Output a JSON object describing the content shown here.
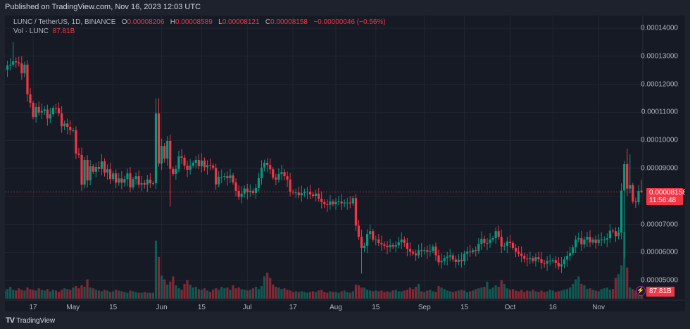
{
  "header": {
    "published": "Published on TradingView.com, Nov 16, 2023 12:03 UTC"
  },
  "legend": {
    "symbol": "LUNC / TetherUS, 1D, BINANCE",
    "o_label": "O",
    "o": "0.00008206",
    "h_label": "H",
    "h": "0.00008589",
    "l_label": "L",
    "l": "0.00008121",
    "c_label": "C",
    "c": "0.00008158",
    "change": "−0.00000046 (−0.56%)",
    "vol_label": "Vol · LUNC",
    "vol": "87.81B"
  },
  "price_axis": {
    "labels": [
      "0.00014000",
      "0.00013000",
      "0.00012000",
      "0.00011000",
      "0.00010000",
      "0.00009000",
      "0.00007000",
      "0.00006000",
      "0.00005000"
    ],
    "values": [
      14,
      13,
      12,
      11,
      10,
      9,
      7,
      6,
      5
    ],
    "unit_note": "values in 1e-5"
  },
  "last_price": {
    "value": "0.00008158",
    "countdown": "11:56:48"
  },
  "volume_tag": "87.81B",
  "time_axis": {
    "last_date": "2023-11-16",
    "ticks": [
      {
        "label": "17",
        "date": "2023-04-17"
      },
      {
        "label": "May",
        "date": "2023-05-01"
      },
      {
        "label": "15",
        "date": "2023-05-15"
      },
      {
        "label": "Jun",
        "date": "2023-06-01"
      },
      {
        "label": "15",
        "date": "2023-06-15"
      },
      {
        "label": "Jul",
        "date": "2023-07-01"
      },
      {
        "label": "17",
        "date": "2023-07-17"
      },
      {
        "label": "Aug",
        "date": "2023-08-01"
      },
      {
        "label": "15",
        "date": "2023-08-15"
      },
      {
        "label": "Sep",
        "date": "2023-09-01"
      },
      {
        "label": "15",
        "date": "2023-09-15"
      },
      {
        "label": "Oct",
        "date": "2023-10-01"
      },
      {
        "label": "16",
        "date": "2023-10-16"
      },
      {
        "label": "Nov",
        "date": "2023-11-01"
      }
    ]
  },
  "colors": {
    "up": "#089981",
    "down": "#f23645",
    "bg": "#161a25",
    "grid": "#232632"
  },
  "chart_data": {
    "type": "candlestick",
    "price_unit": "1e-5 USDT",
    "ylim": [
      4.4,
      14.4
    ],
    "closes": [
      12.44,
      12.67,
      12.49,
      12.5,
      12.52,
      12.67,
      12.7,
      12.82,
      12.78,
      12.74,
      12.39,
      12.7,
      11.64,
      11.34,
      10.83,
      11.19,
      10.99,
      11.05,
      11.1,
      10.78,
      10.93,
      11.16,
      11.15,
      10.96,
      10.5,
      10.6,
      10.48,
      10.36,
      10.36,
      9.53,
      9.48,
      8.42,
      9.3,
      8.57,
      9.07,
      8.88,
      9.05,
      8.98,
      9.25,
      8.85,
      8.97,
      8.62,
      8.82,
      8.49,
      8.64,
      8.49,
      8.62,
      8.82,
      8.32,
      8.62,
      8.72,
      8.42,
      8.47,
      8.42,
      8.6,
      8.47,
      8.47,
      10.96,
      9.17,
      9.8,
      9.35,
      9.98,
      8.98,
      8.8,
      8.98,
      9.43,
      9.38,
      9.1,
      8.95,
      9.1,
      9.2,
      9.3,
      9.08,
      9.28,
      9.04,
      9.12,
      9.1,
      9.02,
      8.43,
      8.7,
      8.7,
      8.72,
      8.65,
      8.75,
      8.5,
      8.2,
      7.98,
      8.1,
      8.28,
      8.15,
      8.2,
      8.12,
      8.3,
      8.65,
      9.03,
      9.2,
      9.12,
      8.97,
      8.67,
      8.6,
      8.8,
      8.87,
      8.72,
      8.6,
      8.17,
      8.14,
      8.14,
      8.04,
      8.12,
      8.17,
      8.17,
      8.07,
      8.02,
      8.1,
      7.92,
      7.8,
      7.72,
      7.7,
      7.82,
      7.72,
      7.8,
      7.82,
      7.75,
      7.78,
      7.78,
      7.75,
      7.94,
      6.96,
      6.56,
      6.16,
      6.24,
      6.66,
      6.76,
      6.46,
      6.46,
      6.34,
      6.29,
      6.24,
      6.19,
      6.26,
      6.21,
      6.26,
      6.36,
      6.46,
      6.34,
      6.13,
      6.03,
      5.96,
      5.9,
      6.08,
      6.06,
      6.08,
      6.03,
      6.06,
      6.21,
      5.9,
      5.65,
      5.7,
      5.8,
      5.85,
      5.9,
      5.75,
      5.66,
      5.74,
      5.69,
      5.96,
      6.03,
      6.01,
      6.08,
      6.06,
      6.31,
      6.49,
      6.34,
      6.34,
      6.46,
      6.51,
      6.76,
      6.56,
      6.21,
      6.24,
      6.39,
      6.34,
      6.16,
      6.03,
      5.96,
      5.88,
      5.78,
      5.76,
      5.8,
      5.7,
      5.83,
      5.76,
      5.63,
      5.6,
      5.7,
      5.7,
      5.73,
      5.63,
      5.5,
      5.58,
      5.75,
      5.88,
      5.98,
      6.18,
      6.46,
      6.51,
      6.29,
      6.46,
      6.56,
      6.36,
      6.46,
      6.34,
      6.46,
      6.46,
      6.46,
      6.51,
      6.78,
      6.76,
      6.58,
      6.71,
      8.206,
      9.15,
      8.28,
      8.4,
      7.82,
      7.79,
      8.2,
      8.158
    ],
    "high_overrides": {
      "7": 13.5,
      "57": 11.5,
      "58": 11.5,
      "222": 9.7,
      "223": 9.5,
      "227": 8.589
    },
    "low_overrides": {
      "62": 7.64,
      "129": 5.25,
      "221": 5.8,
      "227": 8.121
    },
    "volumes_B": [
      150,
      110,
      120,
      140,
      110,
      130,
      160,
      120,
      110,
      140,
      120,
      110,
      150,
      130,
      120,
      110,
      140,
      120,
      110,
      130,
      100,
      120,
      110,
      90,
      120,
      140,
      130,
      120,
      150,
      170,
      140,
      180,
      160,
      260,
      150,
      140,
      120,
      110,
      100,
      120,
      110,
      90,
      100,
      120,
      110,
      100,
      90,
      80,
      110,
      100,
      90,
      80,
      80,
      90,
      80,
      80,
      80,
      780,
      560,
      310,
      260,
      190,
      230,
      300,
      180,
      140,
      120,
      200,
      250,
      190,
      150,
      160,
      130,
      120,
      140,
      110,
      90,
      120,
      140,
      120,
      160,
      140,
      150,
      120,
      180,
      140,
      150,
      130,
      120,
      110,
      120,
      140,
      160,
      130,
      170,
      300,
      350,
      280,
      190,
      160,
      150,
      130,
      140,
      120,
      110,
      90,
      100,
      90,
      100,
      90,
      80,
      90,
      100,
      90,
      110,
      120,
      90,
      80,
      100,
      90,
      90,
      80,
      100,
      110,
      90,
      80,
      100,
      190,
      180,
      150,
      150,
      120,
      110,
      100,
      110,
      100,
      110,
      90,
      100,
      90,
      110,
      120,
      100,
      100,
      110,
      120,
      150,
      130,
      160,
      200,
      100,
      90,
      110,
      120,
      100,
      90,
      170,
      150,
      130,
      110,
      100,
      90,
      100,
      110,
      120,
      110,
      90,
      100,
      110,
      130,
      140,
      150,
      160,
      230,
      130,
      150,
      180,
      160,
      250,
      200,
      140,
      120,
      130,
      110,
      100,
      120,
      90,
      110,
      100,
      120,
      100,
      90,
      110,
      90,
      100,
      120,
      110,
      90,
      100,
      110,
      120,
      130,
      150,
      200,
      260,
      300,
      200,
      180,
      130,
      140,
      120,
      110,
      100,
      130,
      140,
      150,
      120,
      130,
      280,
      330,
      450,
      900,
      420,
      150,
      130,
      110,
      95,
      87.81
    ],
    "volume_max_B": 900
  }
}
